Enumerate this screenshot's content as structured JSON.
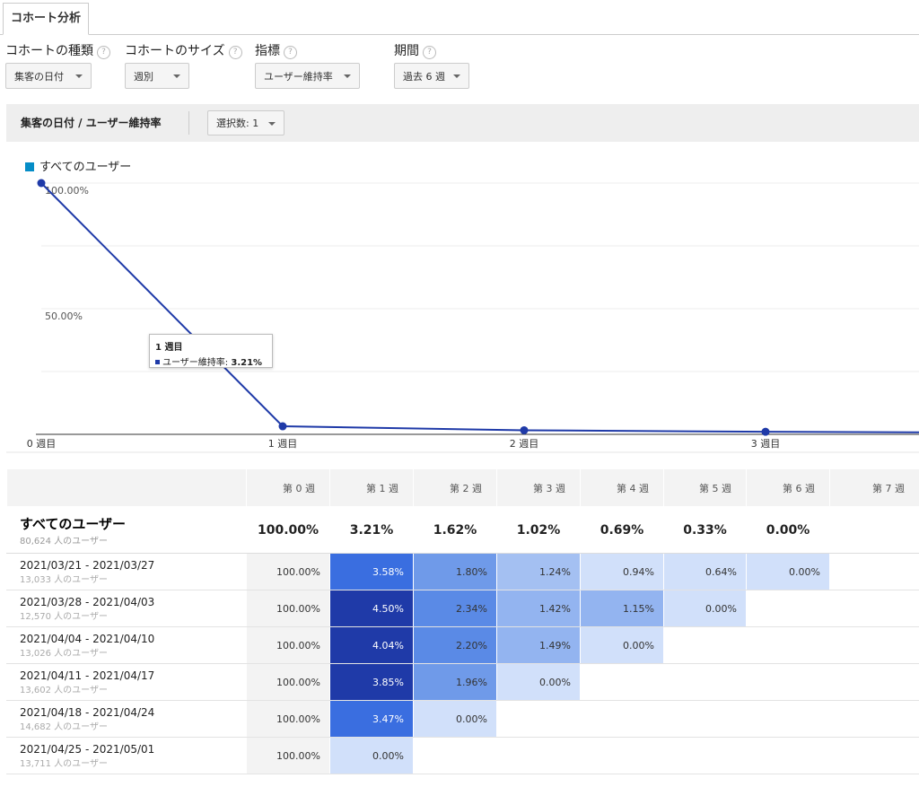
{
  "tab": {
    "label": "コホート分析"
  },
  "controls": [
    {
      "label": "コホートの種類",
      "value": "集客の日付"
    },
    {
      "label": "コホートのサイズ",
      "value": "週別"
    },
    {
      "label": "指標",
      "value": "ユーザー維持率"
    },
    {
      "label": "期間",
      "value": "過去 6 週"
    }
  ],
  "help_glyph": "?",
  "section": {
    "title": "集客の日付 / ユーザー維持率",
    "selection": "選択数: 1"
  },
  "legend": {
    "label": "すべてのユーザー",
    "color": "#058dc7"
  },
  "chart_data": {
    "type": "line",
    "x_ticks": [
      "0 週目",
      "1 週目",
      "2 週目",
      "3 週目"
    ],
    "y_ticks": [
      "100.00%",
      "50.00%"
    ],
    "ylim": [
      0,
      100
    ],
    "series": [
      {
        "name": "すべてのユーザー",
        "color": "#1f3aa8",
        "values": [
          100.0,
          3.21,
          1.62,
          1.02,
          0.69
        ]
      }
    ],
    "tooltip": {
      "title": "1 週目",
      "label": "ユーザー維持率: ",
      "value": "3.21%"
    }
  },
  "table": {
    "headers": [
      "",
      "第 0 週",
      "第 1 週",
      "第 2 週",
      "第 3 週",
      "第 4 週",
      "第 5 週",
      "第 6 週",
      "第 7 週"
    ],
    "total": {
      "name": "すべてのユーザー",
      "users": "80,624 人のユーザー",
      "values": [
        "100.00%",
        "3.21%",
        "1.62%",
        "1.02%",
        "0.69%",
        "0.33%",
        "0.00%",
        ""
      ]
    },
    "rows": [
      {
        "date": "2021/03/21 - 2021/03/27",
        "users": "13,033 人のユーザー",
        "values": [
          "100.00%",
          "3.58%",
          "1.80%",
          "1.24%",
          "0.94%",
          "0.64%",
          "0.00%",
          ""
        ],
        "colors": [
          "",
          "#3a6ee0",
          "#6f9ae9",
          "#a4c0f2",
          "#d1e0fa",
          "#d1e0fa",
          "#d1e0fa",
          ""
        ]
      },
      {
        "date": "2021/03/28 - 2021/04/03",
        "users": "12,570 人のユーザー",
        "values": [
          "100.00%",
          "4.50%",
          "2.34%",
          "1.42%",
          "1.15%",
          "0.00%",
          "",
          ""
        ],
        "colors": [
          "",
          "#1f3aa8",
          "#5a8ae6",
          "#93b4f0",
          "#93b4f0",
          "#d1e0fa",
          "",
          ""
        ]
      },
      {
        "date": "2021/04/04 - 2021/04/10",
        "users": "13,026 人のユーザー",
        "values": [
          "100.00%",
          "4.04%",
          "2.20%",
          "1.49%",
          "0.00%",
          "",
          "",
          ""
        ],
        "colors": [
          "",
          "#1f3aa8",
          "#5a8ae6",
          "#93b4f0",
          "#d1e0fa",
          "",
          "",
          ""
        ]
      },
      {
        "date": "2021/04/11 - 2021/04/17",
        "users": "13,602 人のユーザー",
        "values": [
          "100.00%",
          "3.85%",
          "1.96%",
          "0.00%",
          "",
          "",
          "",
          ""
        ],
        "colors": [
          "",
          "#1f3aa8",
          "#6f9ae9",
          "#d1e0fa",
          "",
          "",
          "",
          ""
        ]
      },
      {
        "date": "2021/04/18 - 2021/04/24",
        "users": "14,682 人のユーザー",
        "values": [
          "100.00%",
          "3.47%",
          "0.00%",
          "",
          "",
          "",
          "",
          ""
        ],
        "colors": [
          "",
          "#3a6ee0",
          "#d1e0fa",
          "",
          "",
          "",
          "",
          ""
        ]
      },
      {
        "date": "2021/04/25 - 2021/05/01",
        "users": "13,711 人のユーザー",
        "values": [
          "100.00%",
          "0.00%",
          "",
          "",
          "",
          "",
          "",
          ""
        ],
        "colors": [
          "",
          "#d1e0fa",
          "",
          "",
          "",
          "",
          "",
          ""
        ]
      }
    ]
  }
}
